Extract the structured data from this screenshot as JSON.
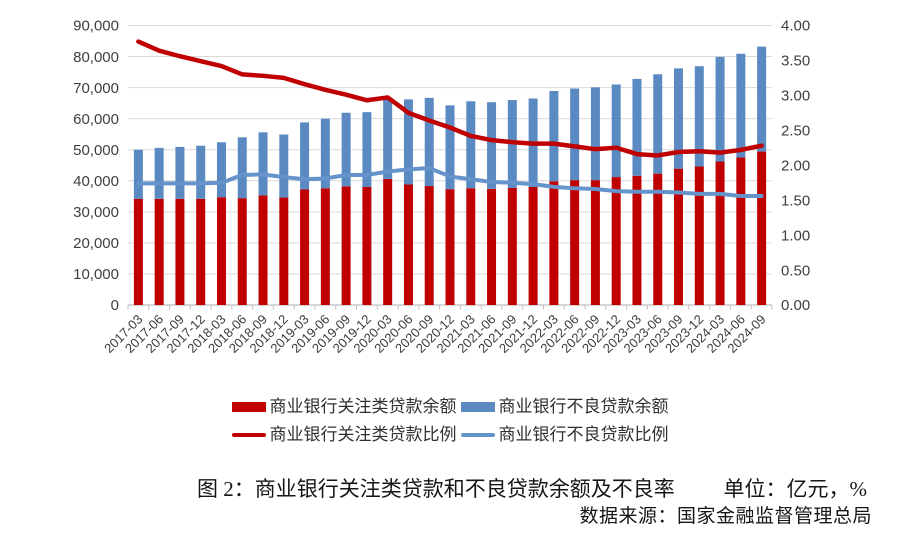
{
  "figure": {
    "caption": "图 2：商业银行关注类贷款和不良贷款余额及不良率",
    "unit_label": "单位：亿元，%",
    "source": "数据来源：国家金融监督管理总局"
  },
  "colors": {
    "special_mention_red": "#C00000",
    "npl_blue": "#5B8AC2",
    "npl_ratio_line_blue": "#6593CB",
    "gridline": "#D9D9D9",
    "axis_line": "#BFBFBF",
    "tick_text": "#3f3f3f"
  },
  "chart_data": {
    "type": "bar",
    "subtype": "stacked-bars-with-lines",
    "categories": [
      "2017-03",
      "2017-06",
      "2017-09",
      "2017-12",
      "2018-03",
      "2018-06",
      "2018-09",
      "2018-12",
      "2019-03",
      "2019-06",
      "2019-09",
      "2019-12",
      "2020-03",
      "2020-06",
      "2020-09",
      "2020-12",
      "2021-03",
      "2021-06",
      "2021-09",
      "2021-12",
      "2022-03",
      "2022-06",
      "2022-09",
      "2022-12",
      "2023-03",
      "2023-06",
      "2023-09",
      "2023-12",
      "2024-03",
      "2024-06",
      "2024-09"
    ],
    "series": [
      {
        "name": "商业银行关注类贷款余额",
        "type": "bar",
        "stack": "balance",
        "axis": "left",
        "color": "#C00000",
        "values": [
          34200,
          34200,
          34200,
          34200,
          34700,
          34400,
          35300,
          34600,
          37200,
          37600,
          38200,
          38000,
          40600,
          38800,
          38300,
          37300,
          37600,
          37400,
          37700,
          38000,
          39800,
          40200,
          40200,
          41200,
          41600,
          42300,
          43900,
          44600,
          46200,
          47500,
          49400
        ]
      },
      {
        "name": "商业银行不良贷款余额",
        "type": "bar",
        "stack": "balance",
        "axis": "left",
        "color": "#5B8AC2",
        "values": [
          15800,
          16400,
          16700,
          17100,
          17700,
          19600,
          20300,
          20300,
          21600,
          22400,
          23700,
          24100,
          26100,
          27400,
          28400,
          27000,
          28000,
          27900,
          28300,
          28500,
          29100,
          29500,
          29900,
          29800,
          31200,
          32000,
          32300,
          32300,
          33700,
          33400,
          33800
        ]
      },
      {
        "name": "商业银行关注类贷款比例",
        "type": "line",
        "axis": "right",
        "color": "#C00000",
        "values": [
          3.77,
          3.64,
          3.56,
          3.49,
          3.42,
          3.3,
          3.28,
          3.25,
          3.16,
          3.08,
          3.01,
          2.93,
          2.97,
          2.75,
          2.64,
          2.54,
          2.42,
          2.36,
          2.33,
          2.31,
          2.31,
          2.27,
          2.23,
          2.25,
          2.16,
          2.14,
          2.19,
          2.2,
          2.18,
          2.22,
          2.28
        ]
      },
      {
        "name": "商业银行不良贷款比例",
        "type": "line",
        "axis": "right",
        "color": "#6593CB",
        "values": [
          1.74,
          1.74,
          1.74,
          1.74,
          1.75,
          1.86,
          1.87,
          1.83,
          1.8,
          1.81,
          1.86,
          1.86,
          1.91,
          1.94,
          1.96,
          1.84,
          1.8,
          1.76,
          1.75,
          1.73,
          1.69,
          1.67,
          1.66,
          1.63,
          1.62,
          1.62,
          1.61,
          1.59,
          1.59,
          1.56,
          1.56
        ]
      }
    ],
    "left_axis": {
      "min": 0,
      "max": 90000,
      "step": 10000,
      "tick_labels": [
        "0",
        "10,000",
        "20,000",
        "30,000",
        "40,000",
        "50,000",
        "60,000",
        "70,000",
        "80,000",
        "90,000"
      ]
    },
    "right_axis": {
      "min": 0,
      "max": 4,
      "step": 0.5,
      "tick_labels": [
        "0.00",
        "0.50",
        "1.00",
        "1.50",
        "2.00",
        "2.50",
        "3.00",
        "3.50",
        "4.00"
      ]
    },
    "grid": true,
    "legend_position": "bottom",
    "title": ""
  }
}
